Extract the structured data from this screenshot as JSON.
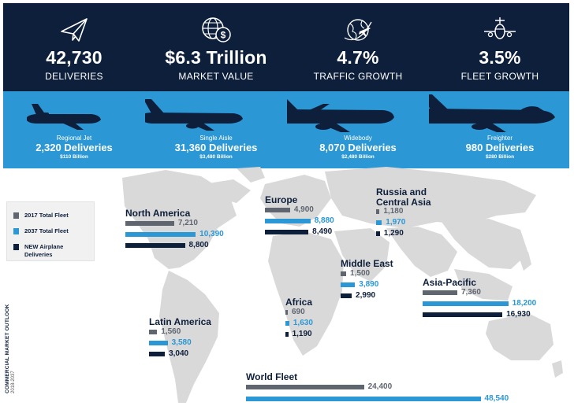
{
  "stats": [
    {
      "value": "42,730",
      "label": "DELIVERIES",
      "icon": "paper-plane-icon"
    },
    {
      "value": "$6.3 Trillion",
      "label": "MARKET VALUE",
      "icon": "globe-dollar-icon"
    },
    {
      "value": "4.7%",
      "label": "TRAFFIC GROWTH",
      "icon": "globe-plane-icon"
    },
    {
      "value": "3.5%",
      "label": "FLEET GROWTH",
      "icon": "airplane-front-icon"
    }
  ],
  "segments": [
    {
      "name": "Regional Jet",
      "deliveries": "2,320 Deliveries",
      "value": "$110 Billion"
    },
    {
      "name": "Single Aisle",
      "deliveries": "31,360 Deliveries",
      "value": "$3,480 Billion"
    },
    {
      "name": "Widebody",
      "deliveries": "8,070 Deliveries",
      "value": "$2,480 Billion"
    },
    {
      "name": "Freighter",
      "deliveries": "980 Deliveries",
      "value": "$280 Billion"
    }
  ],
  "legend": [
    {
      "label": "2017 Total Fleet",
      "color": "#5f6670"
    },
    {
      "label": "2037 Total Fleet",
      "color": "#2b97d4"
    },
    {
      "label": "NEW Airplane Deliveries",
      "color": "#0e1f3b"
    }
  ],
  "side_label": {
    "title": "COMMERCIAL MARKET OUTLOOK",
    "years": "2018-2037"
  },
  "chart_data": {
    "type": "bar",
    "orientation": "horizontal",
    "series_names": [
      "2017 Total Fleet",
      "2037 Total Fleet",
      "NEW Airplane Deliveries"
    ],
    "series_colors": [
      "#5f6670",
      "#2b97d4",
      "#0e1f3b"
    ],
    "regions": [
      {
        "name": "North America",
        "values": [
          7210,
          10390,
          8800
        ],
        "labels": [
          "7,210",
          "10,390",
          "8,800"
        ]
      },
      {
        "name": "Europe",
        "values": [
          4900,
          8880,
          8490
        ],
        "labels": [
          "4,900",
          "8,880",
          "8,490"
        ]
      },
      {
        "name": "Russia and Central Asia",
        "values": [
          1180,
          1970,
          1290
        ],
        "labels": [
          "1,180",
          "1,970",
          "1,290"
        ]
      },
      {
        "name": "Middle East",
        "values": [
          1500,
          3890,
          2990
        ],
        "labels": [
          "1,500",
          "3,890",
          "2,990"
        ]
      },
      {
        "name": "Africa",
        "values": [
          690,
          1630,
          1190
        ],
        "labels": [
          "690",
          "1,630",
          "1,190"
        ]
      },
      {
        "name": "Asia-Pacific",
        "values": [
          7360,
          18200,
          16930
        ],
        "labels": [
          "7,360",
          "18,200",
          "16,930"
        ]
      },
      {
        "name": "Latin America",
        "values": [
          1560,
          3580,
          3040
        ],
        "labels": [
          "1,560",
          "3,580",
          "3,040"
        ]
      },
      {
        "name": "World Fleet",
        "values": [
          24400,
          48540
        ],
        "labels": [
          "24,400",
          "48,540"
        ]
      }
    ]
  }
}
